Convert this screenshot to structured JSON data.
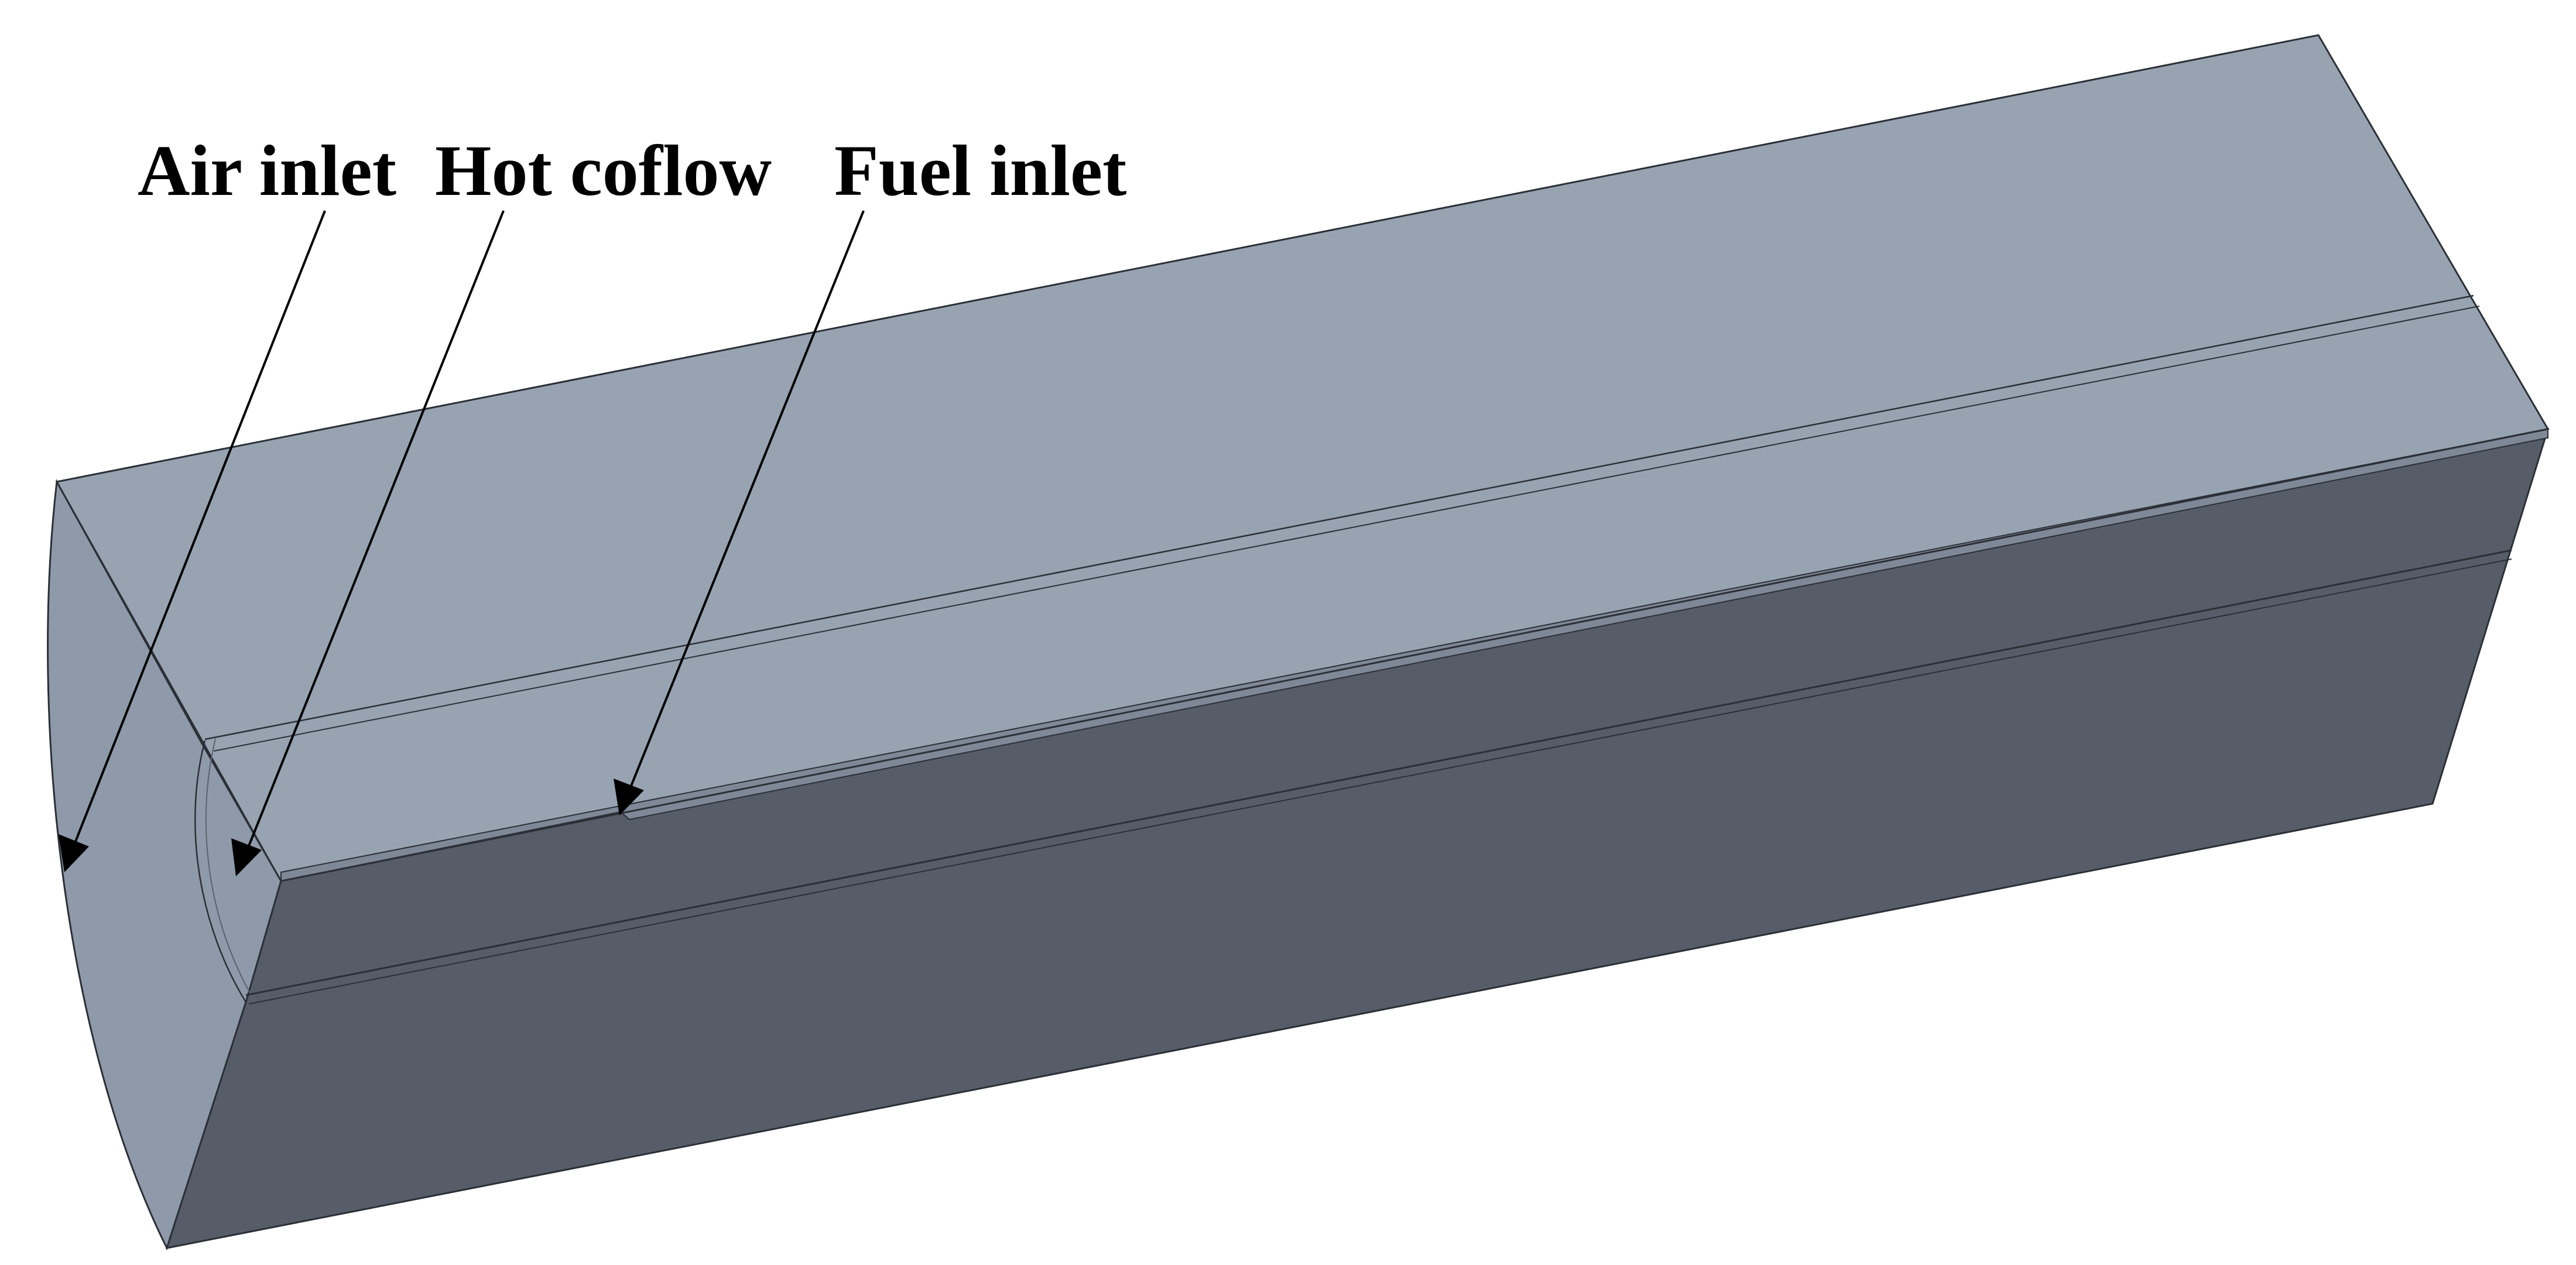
{
  "labels": {
    "air_inlet": "Air inlet",
    "hot_coflow": "Hot coflow",
    "fuel_inlet": "Fuel inlet"
  },
  "colors": {
    "top_face": "#97a3b1",
    "side_face": "#575d68",
    "inlet_face": "#8e9aa9",
    "edge": "#2b2f36",
    "annotation": "#000000",
    "background": "#ffffff"
  }
}
